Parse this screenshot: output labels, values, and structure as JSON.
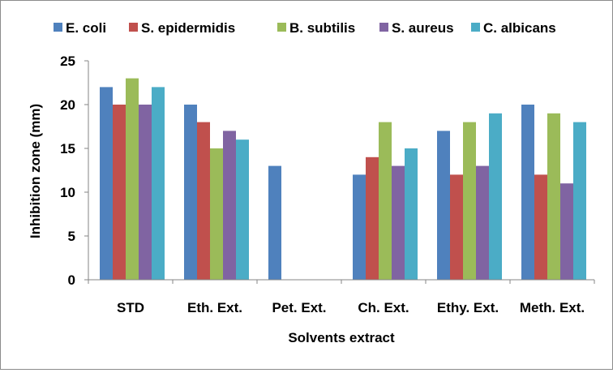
{
  "chart_data": {
    "type": "bar",
    "title": "",
    "xlabel": "Solvents extract",
    "ylabel": "Inhibition zone (mm)",
    "ylim": [
      0,
      25
    ],
    "yticks": [
      "0",
      "5",
      "10",
      "15",
      "20",
      "25"
    ],
    "grid": false,
    "legend_position": "top",
    "categories": [
      "STD",
      "Eth. Ext.",
      "Pet. Ext.",
      "Ch. Ext.",
      "Ethy. Ext.",
      "Meth. Ext."
    ],
    "series": [
      {
        "name": "E. coli",
        "color": "#4f81bd",
        "values": [
          22,
          20,
          13,
          12,
          17,
          20
        ]
      },
      {
        "name": "S. epidermidis",
        "color": "#c0504d",
        "values": [
          20,
          18,
          0,
          14,
          12,
          12
        ]
      },
      {
        "name": "B. subtilis",
        "color": "#9bbb59",
        "values": [
          23,
          15,
          0,
          18,
          18,
          19
        ]
      },
      {
        "name": "S. aureus",
        "color": "#8064a2",
        "values": [
          20,
          17,
          0,
          13,
          13,
          11
        ]
      },
      {
        "name": "C. albicans",
        "color": "#4bacc6",
        "values": [
          22,
          16,
          0,
          15,
          19,
          18
        ]
      }
    ]
  }
}
